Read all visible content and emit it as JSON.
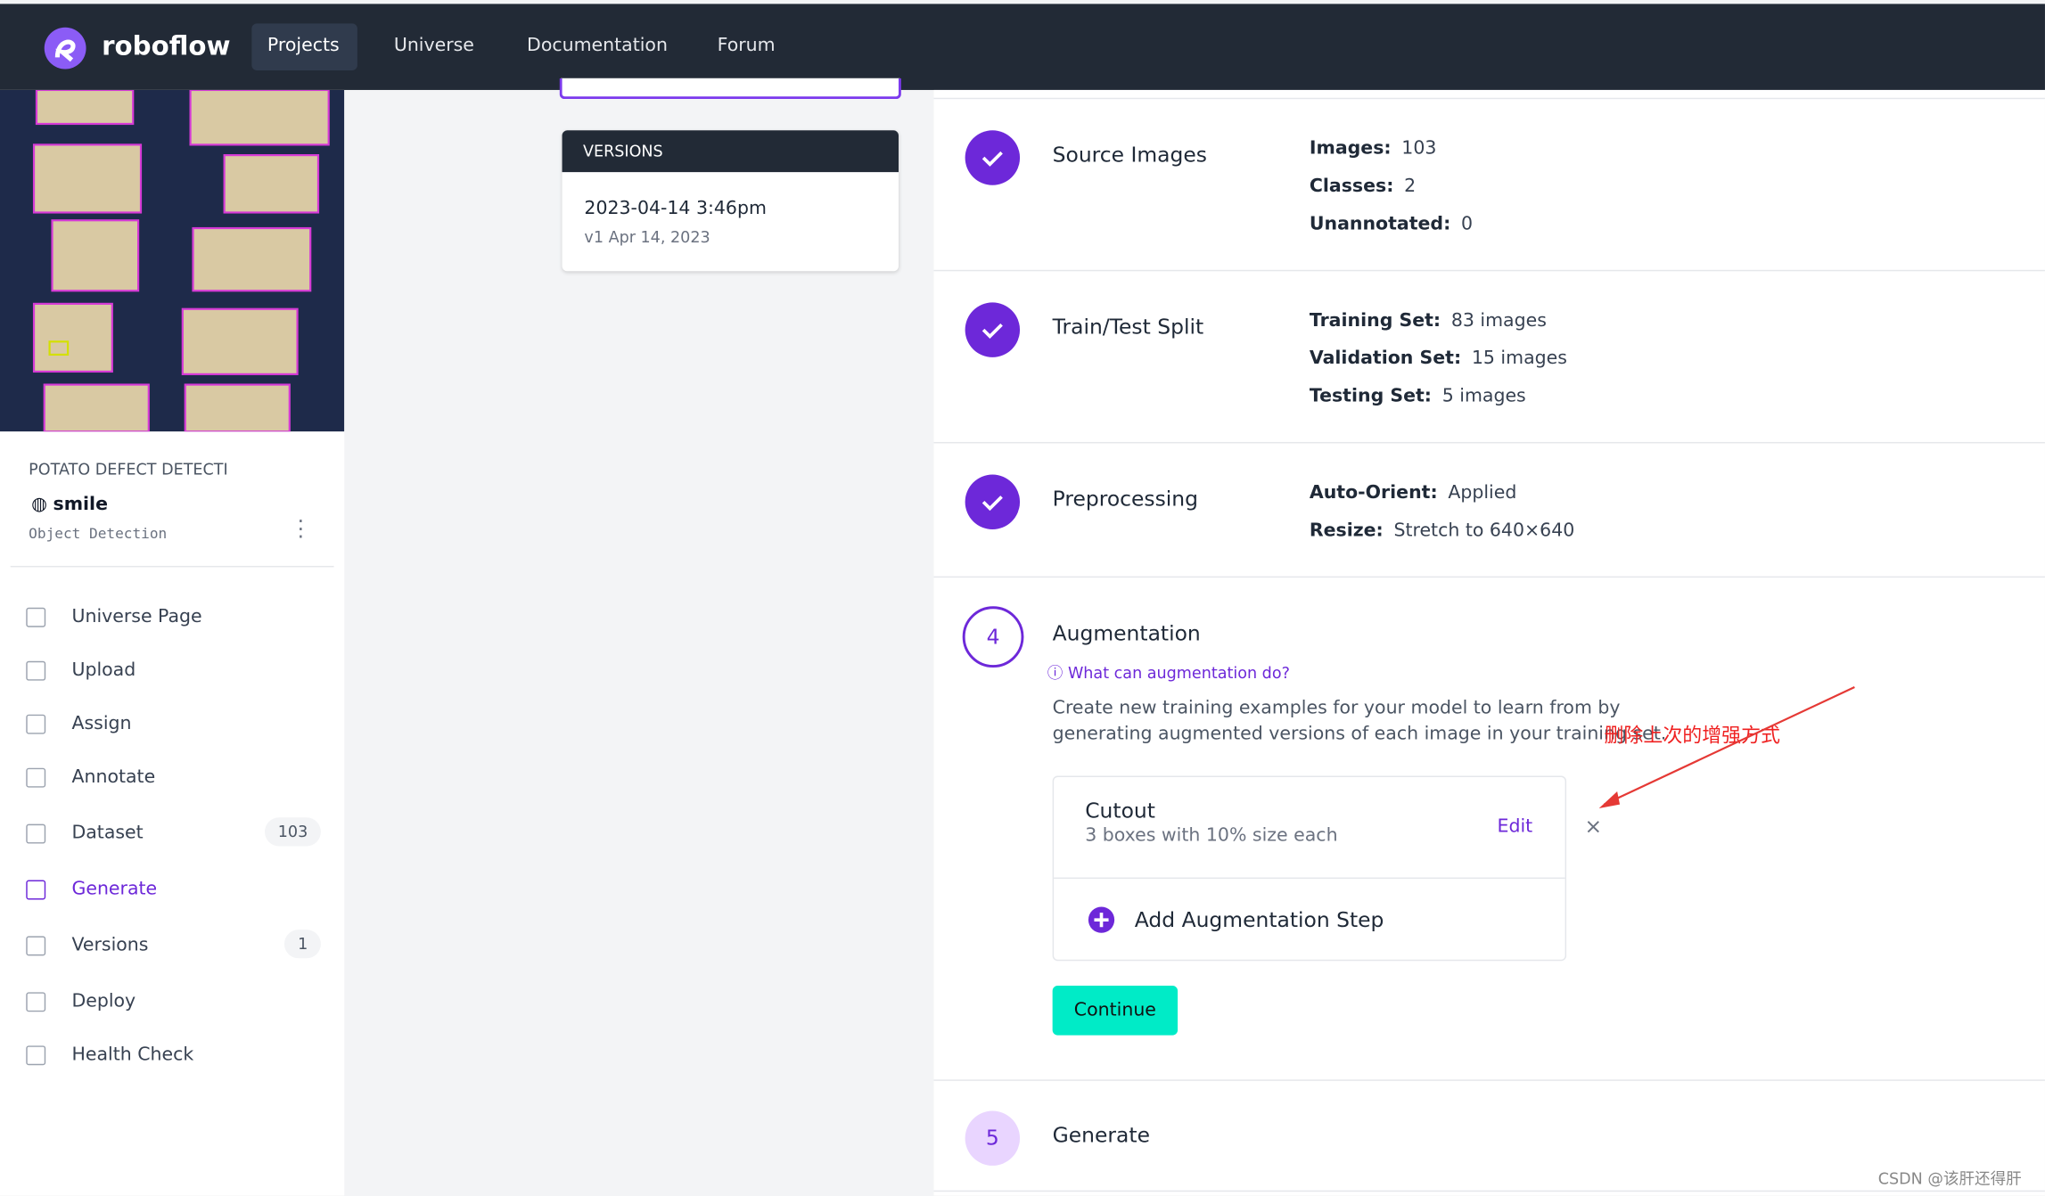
{
  "nav": {
    "brand": "roboflow",
    "links": [
      "Projects",
      "Universe",
      "Documentation",
      "Forum"
    ]
  },
  "sidebar": {
    "project_name": "POTATO DEFECT DETECTI",
    "workspace": "smile",
    "project_type": "Object Detection",
    "menu": [
      {
        "label": "Universe Page"
      },
      {
        "label": "Upload"
      },
      {
        "label": "Assign"
      },
      {
        "label": "Annotate"
      },
      {
        "label": "Dataset",
        "count": "103"
      },
      {
        "label": "Generate"
      },
      {
        "label": "Versions",
        "count": "1"
      },
      {
        "label": "Deploy"
      },
      {
        "label": "Health Check"
      }
    ]
  },
  "versions": {
    "header": "VERSIONS",
    "item_name": "2023-04-14 3:46pm",
    "item_sub": "v1 Apr 14, 2023"
  },
  "steps": [
    {
      "title": "Source Images",
      "details": [
        [
          "Images:",
          "103"
        ],
        [
          "Classes:",
          "2"
        ],
        [
          "Unannotated:",
          "0"
        ]
      ]
    },
    {
      "title": "Train/Test Split",
      "details": [
        [
          "Training Set:",
          "83 images"
        ],
        [
          "Validation Set:",
          "15 images"
        ],
        [
          "Testing Set:",
          "5 images"
        ]
      ]
    },
    {
      "title": "Preprocessing",
      "details": [
        [
          "Auto-Orient:",
          "Applied"
        ],
        [
          "Resize:",
          "Stretch to 640×640"
        ]
      ]
    }
  ],
  "augmentation": {
    "number": "4",
    "title": "Augmentation",
    "help": "What can augmentation do?",
    "description": "Create new training examples for your model to learn from by generating augmented versions of each image in your training set.",
    "step_name": "Cutout",
    "step_desc": "3 boxes with 10% size each",
    "edit": "Edit",
    "remove": "×",
    "add": "Add Augmentation Step",
    "continue": "Continue"
  },
  "generate": {
    "number": "5",
    "title": "Generate"
  },
  "annotation": "删除上次的增强方式",
  "watermark": "CSDN @该肝还得肝"
}
